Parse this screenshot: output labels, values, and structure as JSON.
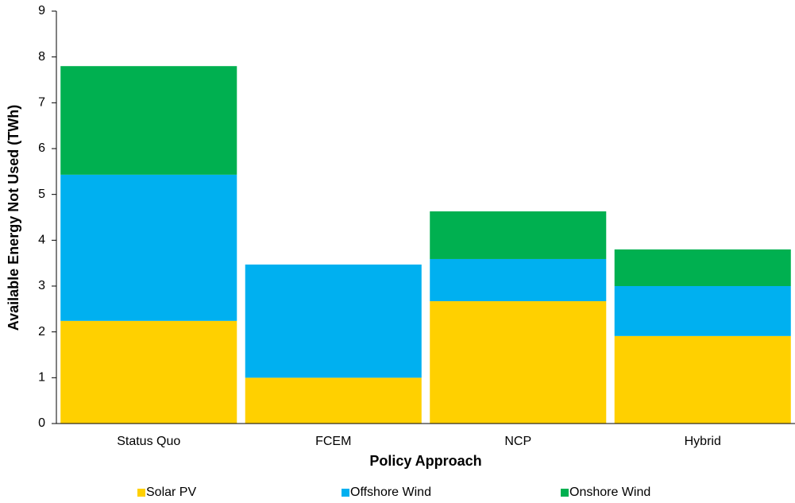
{
  "chart_data": {
    "type": "stacked_bar",
    "x_label": "Policy Approach",
    "y_label": "Available Energy Not Used (TWh)",
    "categories": [
      "Status Quo",
      "FCEM",
      "NCP",
      "Hybrid"
    ],
    "series": [
      {
        "name": "Solar PV",
        "color": "#ffd000",
        "values": [
          2.24,
          1.0,
          2.67,
          1.91
        ]
      },
      {
        "name": "Offshore Wind",
        "color": "#00b0f0",
        "values": [
          3.19,
          2.47,
          0.92,
          1.09
        ]
      },
      {
        "name": "Onshore Wind",
        "color": "#00b050",
        "values": [
          2.37,
          0,
          1.04,
          0.8
        ]
      }
    ],
    "ylim": [
      0,
      9
    ],
    "yticks": [
      0,
      1,
      2,
      3,
      4,
      5,
      6,
      7,
      8,
      9
    ],
    "grid": false,
    "legend": "bottom"
  }
}
